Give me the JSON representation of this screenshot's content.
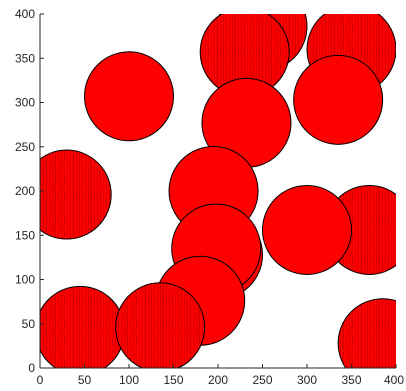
{
  "chart_data": {
    "type": "scatter",
    "title": "",
    "xlabel": "",
    "ylabel": "",
    "xlim": [
      0,
      400
    ],
    "ylim": [
      0,
      400
    ],
    "xticks": [
      "0",
      "50",
      "100",
      "150",
      "200",
      "250",
      "300",
      "350",
      "400"
    ],
    "yticks": [
      "0",
      "50",
      "100",
      "150",
      "200",
      "250",
      "300",
      "350",
      "400"
    ],
    "grid": false,
    "colors": {
      "fill": "#ff0000",
      "edge": "#000000",
      "texture": "#b00000",
      "axes": "#262626"
    },
    "circles": [
      {
        "x": 250,
        "y": 386,
        "r": 50,
        "textured": true
      },
      {
        "x": 350,
        "y": 360,
        "r": 50,
        "textured": true
      },
      {
        "x": 100,
        "y": 307,
        "r": 50,
        "textured": false
      },
      {
        "x": 230,
        "y": 357,
        "r": 50,
        "textured": true
      },
      {
        "x": 335,
        "y": 303,
        "r": 50,
        "textured": false
      },
      {
        "x": 232,
        "y": 277,
        "r": 50,
        "textured": false
      },
      {
        "x": 30,
        "y": 196,
        "r": 50,
        "textured": true
      },
      {
        "x": 195,
        "y": 200,
        "r": 50,
        "textured": false
      },
      {
        "x": 370,
        "y": 156,
        "r": 50,
        "textured": true
      },
      {
        "x": 300,
        "y": 156,
        "r": 50,
        "textured": false
      },
      {
        "x": 200,
        "y": 128,
        "r": 50,
        "textured": false
      },
      {
        "x": 198,
        "y": 135,
        "r": 50,
        "textured": false
      },
      {
        "x": 45,
        "y": 42,
        "r": 50,
        "textured": true
      },
      {
        "x": 385,
        "y": 28,
        "r": 50,
        "textured": true
      },
      {
        "x": 180,
        "y": 76,
        "r": 50,
        "textured": false
      },
      {
        "x": 135,
        "y": 46,
        "r": 50,
        "textured": true
      }
    ]
  }
}
